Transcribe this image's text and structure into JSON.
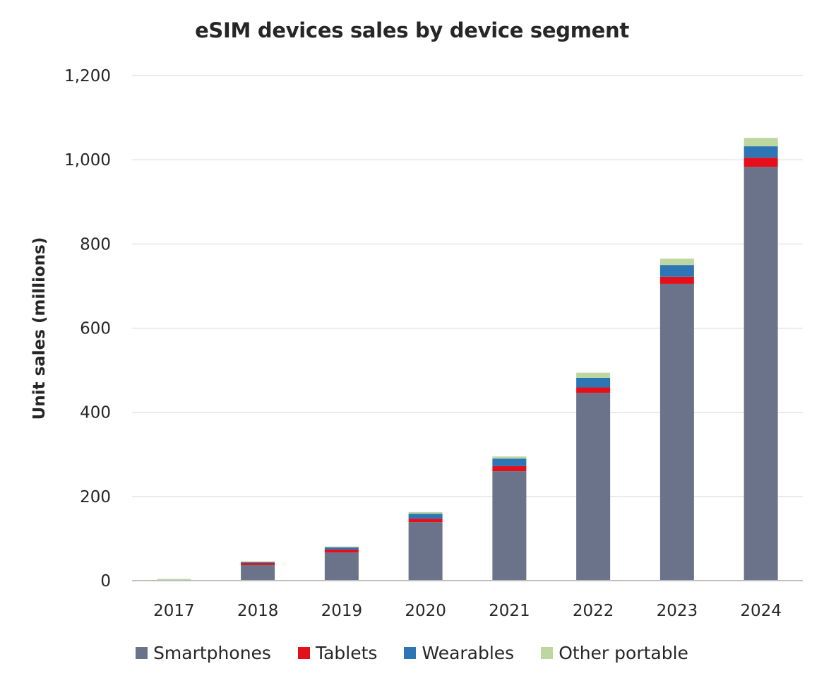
{
  "chart_data": {
    "type": "bar",
    "stacked": true,
    "title": "eSIM devices sales by device segment",
    "xlabel": "",
    "ylabel": "Unit sales (millions)",
    "ylim": [
      0,
      1200
    ],
    "yticks": [
      0,
      200,
      400,
      600,
      800,
      1000,
      1200
    ],
    "ytick_labels": [
      "0",
      "200",
      "400",
      "600",
      "800",
      "1,000",
      "1,200"
    ],
    "grid": true,
    "legend_position": "bottom",
    "categories": [
      "2017",
      "2018",
      "2019",
      "2020",
      "2021",
      "2022",
      "2023",
      "2024"
    ],
    "series": [
      {
        "name": "Smartphones",
        "color": "#6a7389",
        "values": [
          0,
          37,
          67,
          139,
          260,
          446,
          705,
          983
        ]
      },
      {
        "name": "Tablets",
        "color": "#e3101b",
        "values": [
          0,
          5,
          7,
          8,
          12,
          13,
          17,
          22
        ]
      },
      {
        "name": "Wearables",
        "color": "#2e75b6",
        "values": [
          1,
          2,
          5,
          12,
          18,
          23,
          28,
          27
        ]
      },
      {
        "name": "Other portable",
        "color": "#bdd7a0",
        "values": [
          3,
          2,
          2,
          4,
          5,
          12,
          15,
          20
        ]
      }
    ]
  }
}
